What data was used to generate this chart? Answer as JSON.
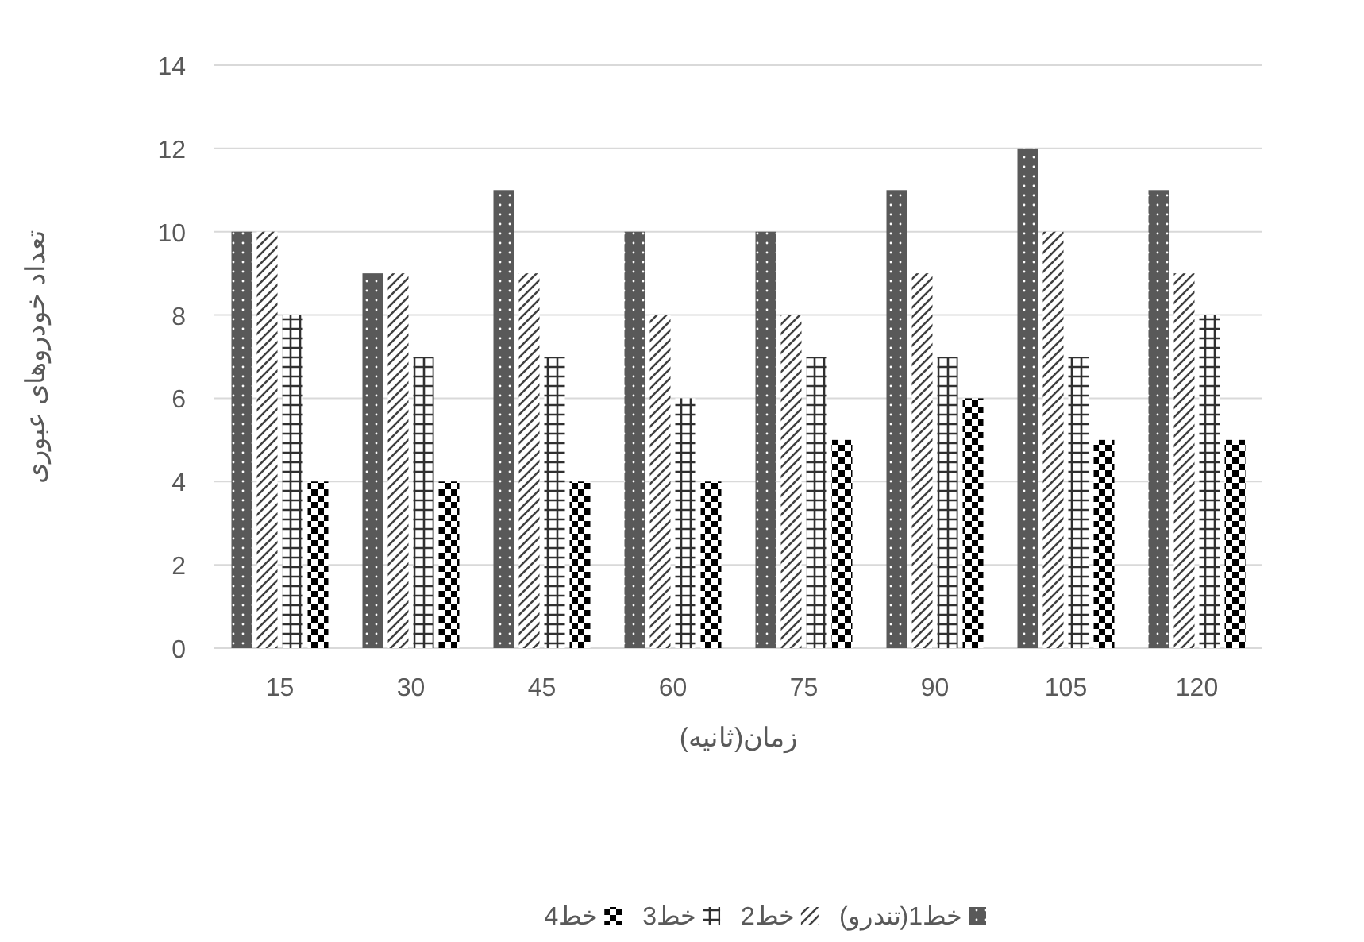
{
  "chart_data": {
    "type": "bar",
    "xlabel": "زمان(ثانیه)",
    "ylabel": "تعداد خودروهای عبوری",
    "categories": [
      "15",
      "30",
      "45",
      "60",
      "75",
      "90",
      "105",
      "120"
    ],
    "series": [
      {
        "name": "خط1(تندرو)",
        "color": "#595959",
        "values": [
          10,
          9,
          11,
          10,
          10,
          11,
          12,
          11
        ]
      },
      {
        "name": "خط2",
        "color": "#404040",
        "values": [
          10,
          9,
          9,
          8,
          8,
          9,
          10,
          9
        ]
      },
      {
        "name": "خط3",
        "color": "#303030",
        "values": [
          8,
          7,
          7,
          6,
          7,
          7,
          7,
          8
        ]
      },
      {
        "name": "خط4",
        "color": "#000000",
        "values": [
          4,
          4,
          4,
          4,
          5,
          6,
          5,
          5
        ]
      }
    ],
    "ylim": [
      0,
      14
    ],
    "yticks": [
      0,
      2,
      4,
      6,
      8,
      10,
      12,
      14
    ],
    "grid": "y",
    "legend": "bottom"
  }
}
